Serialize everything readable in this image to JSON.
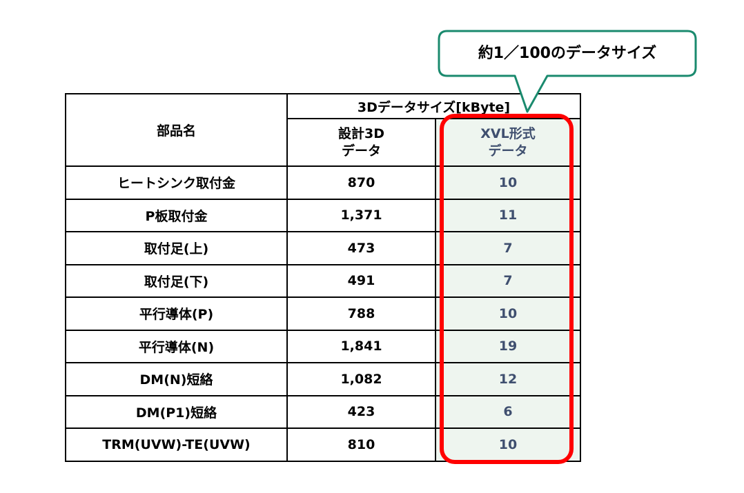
{
  "callout": {
    "text": "約1／100のデータサイズ",
    "border_color": "#1a8a6e"
  },
  "highlight": {
    "border_color": "#ff0000"
  },
  "table": {
    "part_name_header": "部品名",
    "group_header": "3Dデータサイズ[kByte]",
    "design_header_line1": "設計3D",
    "design_header_line2": "データ",
    "xvl_header_line1": "XVL形式",
    "xvl_header_line2": "データ",
    "rows": [
      {
        "name": "ヒートシンク取付金",
        "design": "870",
        "xvl": "10"
      },
      {
        "name": "P板取付金",
        "design": "1,371",
        "xvl": "11"
      },
      {
        "name": "取付足(上)",
        "design": "473",
        "xvl": "7"
      },
      {
        "name": "取付足(下)",
        "design": "491",
        "xvl": "7"
      },
      {
        "name": "平行導体(P)",
        "design": "788",
        "xvl": "10"
      },
      {
        "name": "平行導体(N)",
        "design": "1,841",
        "xvl": "19"
      },
      {
        "name": "DM(N)短絡",
        "design": "1,082",
        "xvl": "12"
      },
      {
        "name": "DM(P1)短絡",
        "design": "423",
        "xvl": "6"
      },
      {
        "name": "TRM(UVW)-TE(UVW)",
        "design": "810",
        "xvl": "10"
      }
    ]
  }
}
